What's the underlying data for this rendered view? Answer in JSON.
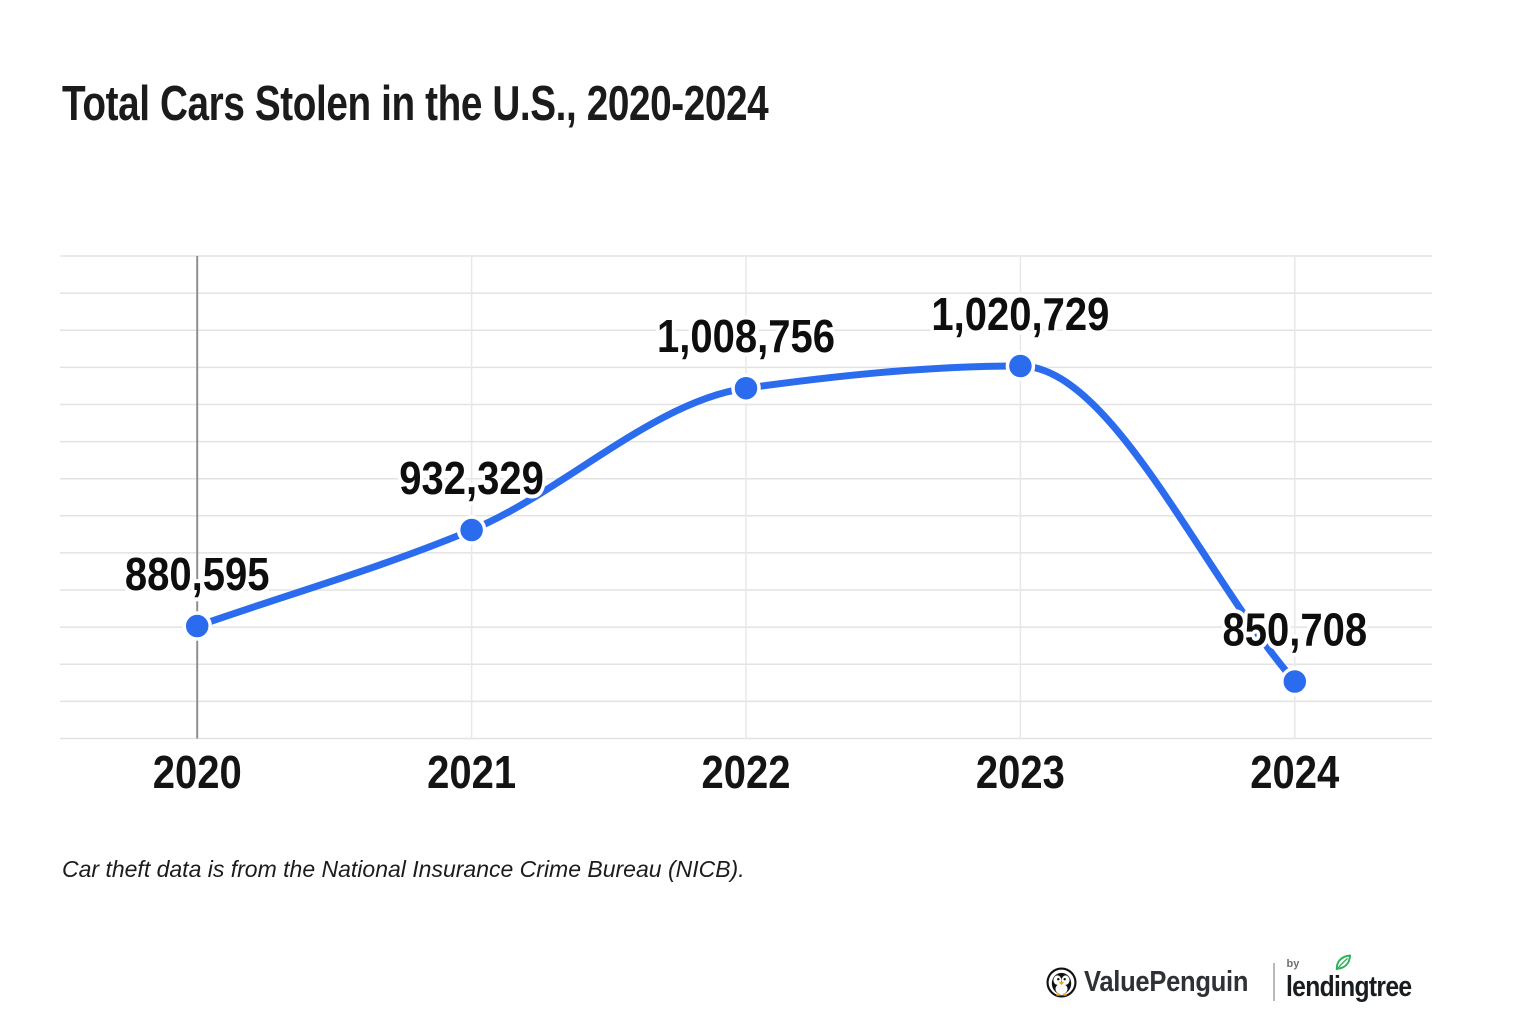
{
  "page": {
    "title": "Total Cars Stolen in the U.S., 2020-2024",
    "footnote": "Car theft data is from the National Insurance Crime Bureau (NICB)."
  },
  "chart_data": {
    "type": "line",
    "title": "Total Cars Stolen in the U.S., 2020-2024",
    "categories": [
      "2020",
      "2021",
      "2022",
      "2023",
      "2024"
    ],
    "values": [
      880595,
      932329,
      1008756,
      1020729,
      850708
    ],
    "value_labels": [
      "880,595",
      "932,329",
      "1,008,756",
      "1,020,729",
      "850,708"
    ],
    "xlabel": "",
    "ylabel": "",
    "ylim": [
      820000,
      1080000
    ],
    "grid_step": 20000,
    "grid": true,
    "legend_position": "none",
    "curve": "monotone",
    "colors": {
      "line": "#2b6cee",
      "point_fill": "#2b6cee",
      "point_halo": "#ffffff",
      "h_grid": "#e3e3e3",
      "v_grid": "#e8e8e8",
      "axis_2020_line": "#8f8f8f",
      "label_text": "#0e0e0e",
      "tick_text": "#141414"
    }
  },
  "footer": {
    "brand1": "ValuePenguin",
    "by": "by",
    "brand2": "lendingtree",
    "icons": [
      "penguin-icon",
      "leaf-icon"
    ],
    "leaf_color": "#2cb15a"
  }
}
